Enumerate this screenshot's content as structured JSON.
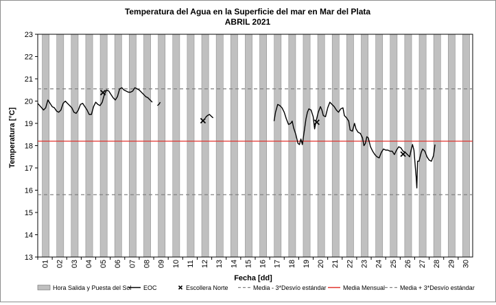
{
  "chart_data": {
    "type": "line",
    "title": "Temperatura del Agua en la Superficie del mar en Mar del Plata",
    "subtitle": "ABRIL 2021",
    "xlabel": "Fecha [dd]",
    "ylabel": "Temperatura [°C]",
    "x_ticks": [
      "01",
      "02",
      "03",
      "04",
      "05",
      "06",
      "07",
      "08",
      "09",
      "10",
      "11",
      "12",
      "13",
      "14",
      "15",
      "16",
      "17",
      "18",
      "19",
      "20",
      "21",
      "22",
      "23",
      "24",
      "25",
      "26",
      "27",
      "28",
      "29",
      "30"
    ],
    "xlim": [
      1,
      31
    ],
    "ylim": [
      13,
      23
    ],
    "y_ticks": [
      "13",
      "14",
      "15",
      "16",
      "17",
      "18",
      "19",
      "20",
      "21",
      "22",
      "23"
    ],
    "grid": false,
    "legend_position": "bottom",
    "legend": [
      {
        "label": "Hora Salida y Puesta del Sol",
        "kind": "bar",
        "color": "#c0c0c0"
      },
      {
        "label": "EOC",
        "kind": "line",
        "color": "#000000"
      },
      {
        "label": "Escollera Norte",
        "kind": "marker",
        "color": "#000000"
      },
      {
        "label": "Media - 3*Desvío estándar",
        "kind": "dashed",
        "color": "#808080"
      },
      {
        "label": "Media Mensual",
        "kind": "line",
        "color": "#e0302a"
      },
      {
        "label": "Media + 3*Desvío estándar",
        "kind": "dashed",
        "color": "#808080"
      }
    ],
    "daylight_bands": [
      [
        1.31,
        1.79
      ],
      [
        2.31,
        2.79
      ],
      [
        3.31,
        3.79
      ],
      [
        4.31,
        4.79
      ],
      [
        5.31,
        5.79
      ],
      [
        6.31,
        6.79
      ],
      [
        7.31,
        7.79
      ],
      [
        8.31,
        8.79
      ],
      [
        9.31,
        9.79
      ],
      [
        10.31,
        10.79
      ],
      [
        11.31,
        11.79
      ],
      [
        12.31,
        12.79
      ],
      [
        13.31,
        13.79
      ],
      [
        14.31,
        14.79
      ],
      [
        15.31,
        15.79
      ],
      [
        16.31,
        16.79
      ],
      [
        17.31,
        17.79
      ],
      [
        18.31,
        18.79
      ],
      [
        19.31,
        19.79
      ],
      [
        20.31,
        20.79
      ],
      [
        21.31,
        21.79
      ],
      [
        22.31,
        22.79
      ],
      [
        23.31,
        23.79
      ],
      [
        24.31,
        24.79
      ],
      [
        25.31,
        25.79
      ],
      [
        26.31,
        26.79
      ],
      [
        27.31,
        27.79
      ],
      [
        28.31,
        28.79
      ],
      [
        29.31,
        29.79
      ],
      [
        30.31,
        30.79
      ]
    ],
    "reference_lines": {
      "media_mensual": 18.2,
      "media_menos_3sd": 15.8,
      "media_mas_3sd": 20.55
    },
    "series": [
      {
        "name": "EOC",
        "segments": [
          [
            [
              1.0,
              19.9
            ],
            [
              1.2,
              19.75
            ],
            [
              1.4,
              19.6
            ],
            [
              1.55,
              19.7
            ],
            [
              1.7,
              20.05
            ],
            [
              1.85,
              19.9
            ],
            [
              2.0,
              19.75
            ],
            [
              2.15,
              19.7
            ],
            [
              2.3,
              19.55
            ],
            [
              2.45,
              19.5
            ],
            [
              2.6,
              19.6
            ],
            [
              2.75,
              19.9
            ],
            [
              2.9,
              20.0
            ],
            [
              3.05,
              19.9
            ],
            [
              3.2,
              19.8
            ],
            [
              3.35,
              19.7
            ],
            [
              3.5,
              19.5
            ],
            [
              3.65,
              19.45
            ],
            [
              3.8,
              19.6
            ],
            [
              3.95,
              19.85
            ],
            [
              4.1,
              19.9
            ],
            [
              4.25,
              19.75
            ],
            [
              4.4,
              19.6
            ],
            [
              4.55,
              19.4
            ],
            [
              4.7,
              19.4
            ],
            [
              4.85,
              19.75
            ],
            [
              5.0,
              19.95
            ],
            [
              5.15,
              19.85
            ],
            [
              5.3,
              19.8
            ],
            [
              5.45,
              19.95
            ],
            [
              5.6,
              20.3
            ],
            [
              5.75,
              20.5
            ],
            [
              5.9,
              20.45
            ],
            [
              6.05,
              20.3
            ],
            [
              6.2,
              20.15
            ],
            [
              6.35,
              20.05
            ],
            [
              6.5,
              20.2
            ],
            [
              6.65,
              20.55
            ],
            [
              6.8,
              20.6
            ],
            [
              6.95,
              20.5
            ],
            [
              7.1,
              20.45
            ],
            [
              7.25,
              20.4
            ],
            [
              7.4,
              20.4
            ],
            [
              7.55,
              20.45
            ],
            [
              7.7,
              20.6
            ],
            [
              7.85,
              20.55
            ],
            [
              8.0,
              20.5
            ],
            [
              8.15,
              20.4
            ],
            [
              8.3,
              20.3
            ],
            [
              8.45,
              20.2
            ],
            [
              8.6,
              20.15
            ],
            [
              8.75,
              20.05
            ],
            [
              8.9,
              19.95
            ]
          ],
          [
            [
              9.25,
              19.8
            ],
            [
              9.35,
              19.85
            ],
            [
              9.45,
              19.95
            ]
          ],
          [
            [
              12.55,
              19.25
            ],
            [
              12.7,
              19.35
            ],
            [
              12.85,
              19.4
            ],
            [
              13.0,
              19.3
            ],
            [
              13.1,
              19.25
            ]
          ],
          [
            [
              17.3,
              19.1
            ],
            [
              17.4,
              19.5
            ],
            [
              17.55,
              19.85
            ],
            [
              17.7,
              19.8
            ],
            [
              17.85,
              19.7
            ],
            [
              18.0,
              19.5
            ],
            [
              18.15,
              19.2
            ],
            [
              18.3,
              18.95
            ],
            [
              18.45,
              19.0
            ],
            [
              18.55,
              19.1
            ],
            [
              18.65,
              18.8
            ],
            [
              18.8,
              18.5
            ],
            [
              18.95,
              18.1
            ],
            [
              19.05,
              18.05
            ],
            [
              19.15,
              18.3
            ],
            [
              19.25,
              18.05
            ],
            [
              19.35,
              18.5
            ],
            [
              19.5,
              19.2
            ],
            [
              19.6,
              19.5
            ],
            [
              19.7,
              19.65
            ],
            [
              19.85,
              19.6
            ],
            [
              20.0,
              19.3
            ],
            [
              20.1,
              18.75
            ],
            [
              20.2,
              19.1
            ],
            [
              20.35,
              19.5
            ],
            [
              20.5,
              19.75
            ],
            [
              20.6,
              19.6
            ],
            [
              20.7,
              19.35
            ],
            [
              20.85,
              19.3
            ],
            [
              21.0,
              19.7
            ],
            [
              21.15,
              19.95
            ],
            [
              21.3,
              19.85
            ],
            [
              21.45,
              19.75
            ],
            [
              21.6,
              19.6
            ],
            [
              21.75,
              19.5
            ],
            [
              21.9,
              19.65
            ],
            [
              22.05,
              19.7
            ],
            [
              22.15,
              19.35
            ],
            [
              22.3,
              19.25
            ],
            [
              22.45,
              19.1
            ],
            [
              22.55,
              18.7
            ],
            [
              22.7,
              18.65
            ],
            [
              22.85,
              19.0
            ],
            [
              22.95,
              18.75
            ],
            [
              23.1,
              18.6
            ],
            [
              23.25,
              18.55
            ],
            [
              23.4,
              18.35
            ],
            [
              23.5,
              18.0
            ],
            [
              23.6,
              18.1
            ],
            [
              23.7,
              18.4
            ],
            [
              23.8,
              18.35
            ],
            [
              23.95,
              17.95
            ],
            [
              24.1,
              17.75
            ],
            [
              24.25,
              17.6
            ],
            [
              24.4,
              17.5
            ],
            [
              24.55,
              17.45
            ],
            [
              24.7,
              17.7
            ],
            [
              24.85,
              17.85
            ],
            [
              25.0,
              17.8
            ],
            [
              25.15,
              17.8
            ],
            [
              25.3,
              17.75
            ],
            [
              25.45,
              17.75
            ],
            [
              25.6,
              17.6
            ],
            [
              25.75,
              17.8
            ],
            [
              25.9,
              17.95
            ],
            [
              26.05,
              17.9
            ],
            [
              26.2,
              17.75
            ],
            [
              26.35,
              17.7
            ],
            [
              26.5,
              17.6
            ],
            [
              26.65,
              17.5
            ],
            [
              26.75,
              17.8
            ],
            [
              26.85,
              18.05
            ],
            [
              26.95,
              17.8
            ],
            [
              27.05,
              17.0
            ],
            [
              27.1,
              16.6
            ],
            [
              27.15,
              16.1
            ],
            [
              27.2,
              17.3
            ],
            [
              27.3,
              17.3
            ],
            [
              27.45,
              17.7
            ],
            [
              27.55,
              17.85
            ],
            [
              27.7,
              17.75
            ],
            [
              27.85,
              17.5
            ],
            [
              28.0,
              17.35
            ],
            [
              28.15,
              17.3
            ],
            [
              28.3,
              17.55
            ],
            [
              28.4,
              18.05
            ]
          ]
        ]
      },
      {
        "name": "Escollera Norte",
        "points": [
          [
            5.5,
            20.38
          ],
          [
            12.4,
            19.12
          ],
          [
            20.25,
            19.05
          ],
          [
            26.2,
            17.62
          ]
        ]
      }
    ]
  }
}
